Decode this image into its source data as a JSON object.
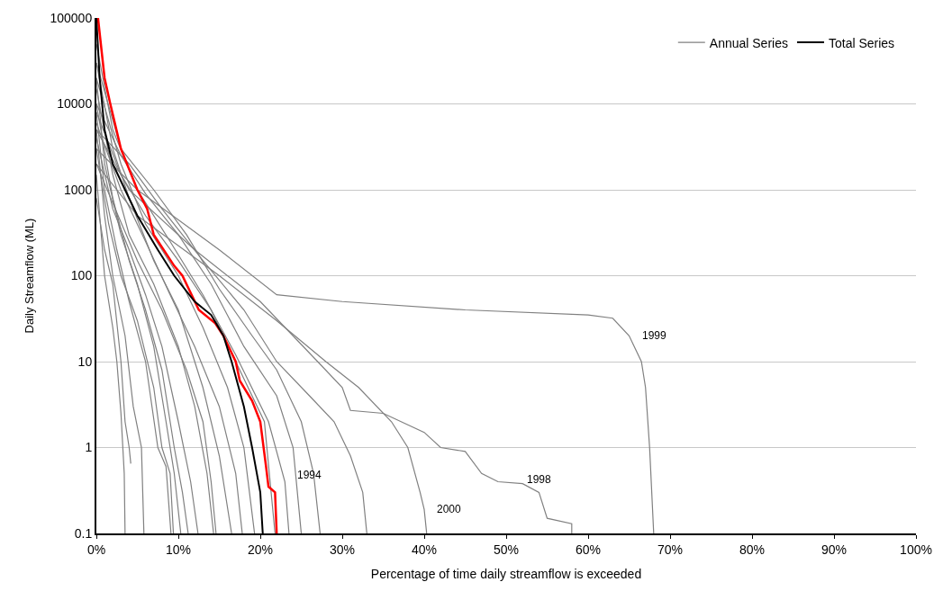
{
  "chart_data": {
    "type": "line",
    "xlabel": "Percentage of time daily streamflow is exceeded",
    "ylabel": "Daily Streamflow (ML)",
    "log": "y",
    "grid": "y",
    "legend": "top right",
    "marker": "none",
    "line_style": "solid",
    "xlim": [
      0,
      100
    ],
    "xticks": [
      {
        "value": 0,
        "label": "0%"
      },
      {
        "value": 10,
        "label": "10%"
      },
      {
        "value": 20,
        "label": "20%"
      },
      {
        "value": 30,
        "label": "30%"
      },
      {
        "value": 40,
        "label": "40%"
      },
      {
        "value": 50,
        "label": "50%"
      },
      {
        "value": 60,
        "label": "60%"
      },
      {
        "value": 70,
        "label": "70%"
      },
      {
        "value": 80,
        "label": "80%"
      },
      {
        "value": 90,
        "label": "90%"
      },
      {
        "value": 100,
        "label": "100%"
      }
    ],
    "ylim": [
      0.1,
      100000
    ],
    "yticks": [
      0.1,
      1,
      10,
      100,
      1000,
      10000,
      100000
    ],
    "series": [
      {
        "name": "Annual Series",
        "color": "#808080",
        "x": [
          0,
          1,
          2,
          3,
          3.5,
          4,
          4.2
        ],
        "values": [
          800,
          200,
          80,
          10,
          2,
          1,
          0.65
        ]
      },
      {
        "color": "#808080",
        "x": [
          0,
          1,
          2,
          2.5,
          3,
          3.4,
          3.5
        ],
        "values": [
          1500,
          100,
          25,
          10,
          2.5,
          0.5,
          0.1
        ]
      },
      {
        "color": "#808080",
        "x": [
          0,
          1,
          2,
          3.5,
          4.5,
          5.5,
          5.8
        ],
        "values": [
          5000,
          500,
          100,
          20,
          3,
          1,
          0.1
        ]
      },
      {
        "color": "#808080",
        "x": [
          0,
          1,
          2.5,
          4,
          6,
          7.5,
          8.5,
          9.1
        ],
        "values": [
          8000,
          1000,
          200,
          50,
          10,
          1,
          0.6,
          0.1
        ]
      },
      {
        "color": "#808080",
        "x": [
          0,
          1.5,
          3,
          5,
          7,
          8,
          9,
          9.4
        ],
        "values": [
          3000,
          400,
          100,
          30,
          5,
          1,
          0.5,
          0.1
        ]
      },
      {
        "color": "#808080",
        "x": [
          0,
          1,
          3,
          5,
          7,
          8.5,
          9.5,
          10.3
        ],
        "values": [
          20000,
          2000,
          300,
          80,
          15,
          2,
          0.5,
          0.1
        ]
      },
      {
        "color": "#808080",
        "x": [
          0,
          2,
          4,
          6,
          8,
          9.5,
          10.5,
          11.2
        ],
        "values": [
          10000,
          800,
          150,
          40,
          8,
          1,
          0.3,
          0.1
        ]
      },
      {
        "color": "#808080",
        "x": [
          0,
          2,
          4,
          6,
          8,
          10,
          11.5,
          12.4
        ],
        "values": [
          4000,
          600,
          200,
          60,
          15,
          2,
          0.4,
          0.1
        ]
      },
      {
        "color": "#808080",
        "x": [
          0,
          2,
          4,
          7,
          10,
          12,
          13.5,
          14.3
        ],
        "values": [
          15000,
          1500,
          300,
          80,
          15,
          3,
          0.5,
          0.1
        ]
      },
      {
        "color": "#808080",
        "x": [
          0,
          2,
          5,
          8,
          11,
          13,
          14,
          14.6
        ],
        "values": [
          2000,
          700,
          150,
          40,
          8,
          2,
          0.4,
          0.1
        ]
      },
      {
        "color": "#808080",
        "x": [
          0,
          2,
          4,
          7,
          10,
          13,
          15,
          16.5
        ],
        "values": [
          30000,
          3000,
          800,
          150,
          40,
          5,
          0.8,
          0.1
        ]
      },
      {
        "color": "#808080",
        "x": [
          0,
          3,
          6,
          9,
          12,
          15,
          17,
          17.8
        ],
        "values": [
          6000,
          1000,
          250,
          60,
          15,
          3,
          0.5,
          0.1
        ]
      },
      {
        "color": "#808080",
        "x": [
          0,
          3,
          6,
          10,
          13,
          16,
          18,
          19.3
        ],
        "values": [
          20000,
          2000,
          400,
          100,
          25,
          5,
          1,
          0.1
        ]
      },
      {
        "color": "#808080",
        "x": [
          0,
          3,
          6,
          10,
          14,
          17,
          20.5,
          21.8
        ],
        "values": [
          8000,
          1500,
          500,
          150,
          40,
          10,
          2,
          0.1
        ]
      },
      {
        "color": "#808080",
        "x": [
          0,
          2,
          5,
          9,
          13,
          17,
          21,
          23,
          23.5
        ],
        "values": [
          50000,
          5000,
          1000,
          250,
          60,
          12,
          2,
          0.4,
          0.1
        ]
      },
      {
        "color": "#808080",
        "x": [
          0,
          3,
          6,
          10,
          14,
          18,
          22,
          24,
          25
        ],
        "values": [
          10000,
          2500,
          900,
          300,
          80,
          15,
          4,
          1,
          0.1
        ]
      },
      {
        "color": "#808080",
        "x": [
          0,
          3,
          7,
          11,
          15,
          19,
          22,
          25,
          26.5,
          27.3
        ],
        "values": [
          30000,
          3000,
          1000,
          300,
          70,
          20,
          8,
          2,
          0.5,
          0.1
        ]
      },
      {
        "color": "#808080",
        "x": [
          0,
          4,
          8,
          13,
          18,
          22,
          26,
          29,
          31,
          32.5,
          33
        ],
        "values": [
          5000,
          2000,
          600,
          150,
          40,
          10,
          4,
          2,
          0.8,
          0.3,
          0.1
        ]
      },
      {
        "color": "#808080",
        "x": [
          0,
          5,
          15,
          22,
          28,
          32,
          36,
          38,
          39.5,
          40,
          40.3
        ],
        "values": [
          2000,
          500,
          100,
          30,
          10,
          5,
          2,
          1,
          0.3,
          0.19,
          0.1
        ]
      },
      {
        "color": "#808080",
        "x": [
          0,
          4,
          12,
          20,
          27,
          30,
          31,
          35,
          40,
          42,
          45,
          47,
          49,
          52,
          54,
          55,
          58,
          58
        ],
        "values": [
          5000,
          1000,
          200,
          50,
          10,
          5,
          2.7,
          2.5,
          1.5,
          1,
          0.9,
          0.5,
          0.4,
          0.38,
          0.3,
          0.15,
          0.13,
          0.1
        ]
      },
      {
        "color": "#808080",
        "x": [
          0,
          5,
          15,
          22,
          30,
          45,
          60,
          63,
          65,
          66.5,
          67,
          67.5,
          68
        ],
        "values": [
          3000,
          1000,
          200,
          60,
          50,
          40,
          35,
          32,
          20,
          10,
          5,
          1,
          0.1
        ]
      },
      {
        "color": "#ff0000",
        "x": [
          0.2,
          1,
          1.7,
          3,
          5,
          6.2,
          7,
          9.5,
          10.5,
          12.5,
          14.5,
          15.5,
          17,
          17.5,
          19,
          20,
          20.7,
          21,
          21.8,
          22
        ],
        "values": [
          100000,
          20000,
          10000,
          3000,
          1000,
          600,
          300,
          130,
          100,
          40,
          28,
          20,
          10,
          6,
          3.5,
          2,
          0.6,
          0.35,
          0.3,
          0.1
        ]
      },
      {
        "name": "Total Series",
        "color": "#000000",
        "x": [
          0,
          0.4,
          1,
          2,
          3.5,
          5,
          7.5,
          9.5,
          12,
          14,
          15.5,
          16.5,
          18,
          19,
          20,
          20.3
        ],
        "values": [
          100000,
          20000,
          5000,
          2000,
          1000,
          500,
          200,
          100,
          50,
          35,
          20,
          10,
          3,
          1,
          0.3,
          0.1
        ]
      }
    ],
    "annotations": [
      {
        "text": "1999",
        "x": 65,
        "y": 20
      },
      {
        "text": "1998",
        "x": 51,
        "y": 0.42
      },
      {
        "text": "2000",
        "x": 40,
        "y": 0.19
      },
      {
        "text": "1994",
        "x": 23,
        "y": 0.48
      }
    ]
  }
}
